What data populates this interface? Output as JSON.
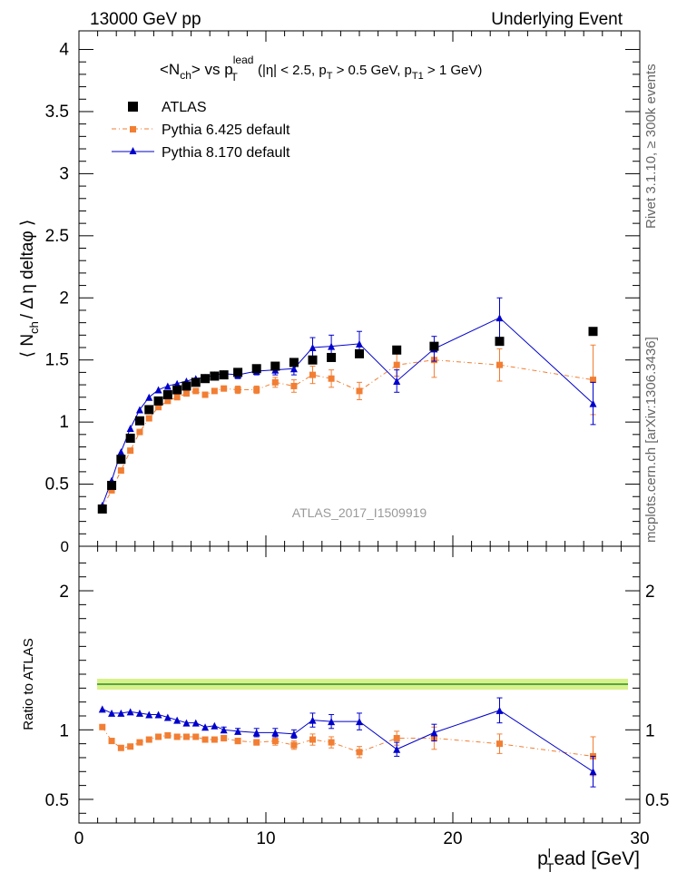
{
  "header": {
    "left": "13000 GeV pp",
    "right": "Underlying Event"
  },
  "side_labels": {
    "rivet": "Rivet 3.1.10, ≥ 300k events",
    "mcplots": "mcplots.cern.ch [arXiv:1306.3436]"
  },
  "chart_data": {
    "type": "scatter",
    "title_parts": {
      "main": "<N",
      "main_sub": "ch",
      "main_mid": "> vs p",
      "main_sub2": "T",
      "main_sup2": "lead",
      "cuts": " (|η| < 2.5, p",
      "cuts_sub1": "T",
      "cuts_mid": " > 0.5 GeV, p",
      "cuts_sub2": "T1",
      "cuts_end": " > 1 GeV)"
    },
    "analysis_label": "ATLAS_2017_I1509919",
    "ylabel_parts": {
      "a": "⟨ N",
      "sub": "ch",
      "b": "/ Δ η deltaφ ⟩"
    },
    "ratio_ylabel": "Ratio to ATLAS",
    "xlabel_parts": {
      "a": "p",
      "sub": "T",
      "sup": "l",
      "b": "ead [GeV]"
    },
    "xlim": [
      0,
      30
    ],
    "ylim": [
      0,
      4.15
    ],
    "ratio_ylim": [
      0.33,
      2.32
    ],
    "x_ticks": [
      0,
      10,
      20,
      30
    ],
    "y_ticks": [
      0.5,
      1,
      1.5,
      2,
      2.5,
      3,
      3.5,
      4
    ],
    "y_ticks_labels": [
      "0.5",
      "1",
      "1.5",
      "2",
      "2.5",
      "3",
      "3.5",
      "4"
    ],
    "y_zero_label": "0",
    "ratio_ticks": [
      0.5,
      1,
      2
    ],
    "ratio_ticks_labels": [
      "0.5",
      "1",
      "2"
    ],
    "series": [
      {
        "name": "ATLAS",
        "color": "#000000",
        "marker": "square",
        "x": [
          1.25,
          1.75,
          2.25,
          2.75,
          3.25,
          3.75,
          4.25,
          4.75,
          5.25,
          5.75,
          6.25,
          6.75,
          7.25,
          7.75,
          8.5,
          9.5,
          10.5,
          11.5,
          12.5,
          13.5,
          15.0,
          17.0,
          19.0,
          22.5,
          27.5
        ],
        "y": [
          0.3,
          0.49,
          0.7,
          0.87,
          1.01,
          1.1,
          1.17,
          1.22,
          1.26,
          1.29,
          1.32,
          1.35,
          1.37,
          1.38,
          1.4,
          1.43,
          1.45,
          1.48,
          1.5,
          1.52,
          1.55,
          1.58,
          1.61,
          1.65,
          1.73
        ]
      },
      {
        "name": "Pythia 6.425 default",
        "color": "#f27e33",
        "marker": "square",
        "x": [
          1.25,
          1.75,
          2.25,
          2.75,
          3.25,
          3.75,
          4.25,
          4.75,
          5.25,
          5.75,
          6.25,
          6.75,
          7.25,
          7.75,
          8.5,
          9.5,
          10.5,
          11.5,
          12.5,
          13.5,
          15.0,
          17.0,
          19.0,
          22.5,
          27.5
        ],
        "y": [
          0.31,
          0.45,
          0.61,
          0.77,
          0.92,
          1.03,
          1.12,
          1.17,
          1.2,
          1.23,
          1.25,
          1.22,
          1.25,
          1.27,
          1.26,
          1.26,
          1.32,
          1.29,
          1.38,
          1.35,
          1.25,
          1.46,
          1.5,
          1.46,
          1.34
        ],
        "err": [
          0,
          0,
          0,
          0,
          0,
          0,
          0,
          0,
          0,
          0,
          0,
          0,
          0,
          0.02,
          0.03,
          0.03,
          0.04,
          0.05,
          0.07,
          0.07,
          0.07,
          0.09,
          0.14,
          0.13,
          0.28
        ],
        "ratio": [
          1.02,
          0.92,
          0.87,
          0.88,
          0.91,
          0.93,
          0.95,
          0.96,
          0.95,
          0.95,
          0.95,
          0.93,
          0.93,
          0.94,
          0.92,
          0.91,
          0.92,
          0.89,
          0.93,
          0.91,
          0.84,
          0.94,
          0.94,
          0.9,
          0.81
        ],
        "ratio_err": [
          0,
          0,
          0,
          0,
          0,
          0,
          0,
          0,
          0,
          0,
          0,
          0,
          0,
          0.02,
          0.02,
          0.02,
          0.03,
          0.03,
          0.04,
          0.04,
          0.04,
          0.05,
          0.08,
          0.07,
          0.14
        ]
      },
      {
        "name": "Pythia 8.170 default",
        "color": "#0000cc",
        "marker": "triangle",
        "x": [
          1.25,
          1.75,
          2.25,
          2.75,
          3.25,
          3.75,
          4.25,
          4.75,
          5.25,
          5.75,
          6.25,
          6.75,
          7.25,
          7.75,
          8.5,
          9.5,
          10.5,
          11.5,
          12.5,
          13.5,
          15.0,
          17.0,
          19.0,
          22.5,
          27.5
        ],
        "y": [
          0.33,
          0.53,
          0.76,
          0.95,
          1.1,
          1.2,
          1.26,
          1.29,
          1.31,
          1.33,
          1.35,
          1.36,
          1.38,
          1.39,
          1.38,
          1.41,
          1.42,
          1.43,
          1.6,
          1.61,
          1.63,
          1.33,
          1.59,
          1.84,
          1.15
        ],
        "err": [
          0,
          0,
          0,
          0,
          0,
          0,
          0,
          0,
          0,
          0,
          0,
          0,
          0,
          0.02,
          0.03,
          0.03,
          0.04,
          0.05,
          0.08,
          0.09,
          0.1,
          0.09,
          0.1,
          0.16,
          0.17
        ],
        "ratio": [
          1.15,
          1.12,
          1.12,
          1.13,
          1.12,
          1.11,
          1.11,
          1.09,
          1.07,
          1.05,
          1.05,
          1.02,
          1.03,
          1.0,
          0.99,
          0.98,
          0.98,
          0.97,
          1.07,
          1.06,
          1.06,
          0.86,
          0.98,
          1.14,
          0.7
        ],
        "ratio_err": [
          0,
          0,
          0,
          0,
          0,
          0,
          0,
          0,
          0,
          0,
          0,
          0,
          0,
          0.02,
          0.02,
          0.03,
          0.03,
          0.03,
          0.05,
          0.05,
          0.06,
          0.05,
          0.06,
          0.09,
          0.11
        ]
      }
    ]
  }
}
